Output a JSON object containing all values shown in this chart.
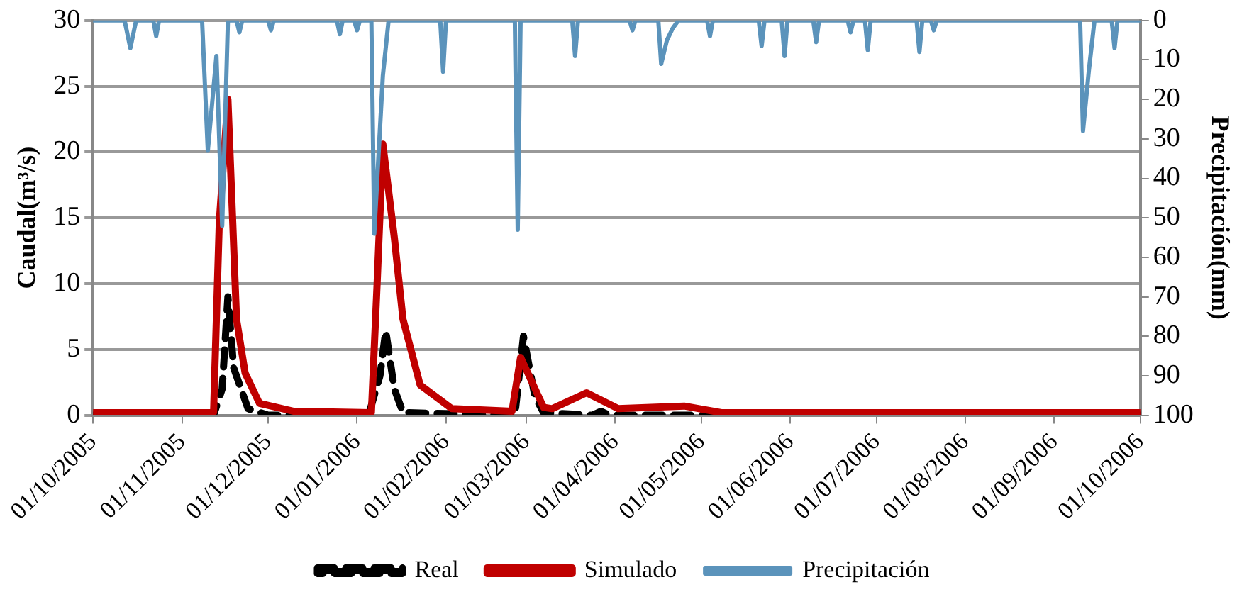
{
  "chart_data": {
    "type": "line",
    "ylabel": "Caudal(m³/s)",
    "y2label": "Precipitación(mm)",
    "xlim": [
      "2005-10-01",
      "2006-10-01"
    ],
    "xticks": [
      {
        "value": "2005-10-01",
        "label": "01/10/2005"
      },
      {
        "value": "2005-11-01",
        "label": "01/11/2005"
      },
      {
        "value": "2005-12-01",
        "label": "01/12/2005"
      },
      {
        "value": "2006-01-01",
        "label": "01/01/2006"
      },
      {
        "value": "2006-02-01",
        "label": "01/02/2006"
      },
      {
        "value": "2006-03-01",
        "label": "01/03/2006"
      },
      {
        "value": "2006-04-01",
        "label": "01/04/2006"
      },
      {
        "value": "2006-05-01",
        "label": "01/05/2006"
      },
      {
        "value": "2006-06-01",
        "label": "01/06/2006"
      },
      {
        "value": "2006-07-01",
        "label": "01/07/2006"
      },
      {
        "value": "2006-08-01",
        "label": "01/08/2006"
      },
      {
        "value": "2006-09-01",
        "label": "01/09/2006"
      },
      {
        "value": "2006-10-01",
        "label": "01/10/2006"
      }
    ],
    "ylim": [
      0,
      30
    ],
    "yticks": [
      0,
      5,
      10,
      15,
      20,
      25,
      30
    ],
    "y2lim": [
      100,
      0
    ],
    "y2ticks": [
      0,
      10,
      20,
      30,
      40,
      50,
      60,
      70,
      80,
      90,
      100
    ],
    "grid": "y",
    "legend": "bottom",
    "marker": "none",
    "series": [
      {
        "name": "Real",
        "color": "#000000",
        "line_style": "dashed",
        "x": [
          "2005-10-01",
          "2005-11-12",
          "2005-11-15",
          "2005-11-17",
          "2005-11-19",
          "2005-11-24",
          "2005-12-01",
          "2006-01-05",
          "2006-01-09",
          "2006-01-11",
          "2006-01-14",
          "2006-01-17",
          "2006-02-25",
          "2006-02-28",
          "2006-03-04",
          "2006-03-07",
          "2006-03-24",
          "2006-03-27",
          "2006-03-30",
          "2006-10-01"
        ],
        "values": [
          0,
          0,
          2,
          9,
          3.6,
          0.5,
          0,
          0,
          3,
          6.4,
          2,
          0.2,
          0,
          6,
          1.4,
          0.2,
          0,
          0.3,
          0,
          0
        ]
      },
      {
        "name": "Simulado",
        "color": "#c00000",
        "line_style": "solid",
        "x": [
          "2005-10-01",
          "2005-11-12",
          "2005-11-14",
          "2005-11-17",
          "2005-11-20",
          "2005-11-23",
          "2005-11-28",
          "2005-12-10",
          "2006-01-06",
          "2006-01-08",
          "2006-01-10",
          "2006-01-14",
          "2006-01-17",
          "2006-01-23",
          "2006-02-03",
          "2006-02-24",
          "2006-02-27",
          "2006-03-07",
          "2006-03-10",
          "2006-03-22",
          "2006-04-02",
          "2006-04-25",
          "2006-05-08",
          "2006-10-01"
        ],
        "values": [
          0.2,
          0.2,
          14.7,
          24,
          7.3,
          3.2,
          0.9,
          0.3,
          0.2,
          10,
          20.6,
          13.5,
          7.3,
          2.3,
          0.5,
          0.3,
          4.4,
          0.6,
          0.5,
          1.7,
          0.5,
          0.7,
          0.2,
          0.2
        ]
      },
      {
        "name": "Precipitación",
        "color": "#5b93bb",
        "line_style": "solid",
        "axis": "y2",
        "x": [
          "2005-10-01",
          "2005-10-12",
          "2005-10-14",
          "2005-10-16",
          "2005-10-22",
          "2005-10-23",
          "2005-10-24",
          "2005-11-08",
          "2005-11-10",
          "2005-11-13",
          "2005-11-15",
          "2005-11-17",
          "2005-11-20",
          "2005-11-21",
          "2005-11-22",
          "2005-12-01",
          "2005-12-02",
          "2005-12-03",
          "2005-12-25",
          "2005-12-26",
          "2005-12-27",
          "2005-12-31",
          "2006-01-01",
          "2006-01-02",
          "2006-01-06",
          "2006-01-07",
          "2006-01-10",
          "2006-01-12",
          "2006-01-30",
          "2006-01-31",
          "2006-02-01",
          "2006-02-25",
          "2006-02-26",
          "2006-02-27",
          "2006-03-17",
          "2006-03-18",
          "2006-03-19",
          "2006-04-06",
          "2006-04-07",
          "2006-04-08",
          "2006-04-16",
          "2006-04-17",
          "2006-04-19",
          "2006-04-21",
          "2006-04-23",
          "2006-05-03",
          "2006-05-04",
          "2006-05-05",
          "2006-05-21",
          "2006-05-22",
          "2006-05-23",
          "2006-05-29",
          "2006-05-30",
          "2006-05-31",
          "2006-06-09",
          "2006-06-10",
          "2006-06-11",
          "2006-06-21",
          "2006-06-22",
          "2006-06-23",
          "2006-06-27",
          "2006-06-28",
          "2006-06-29",
          "2006-07-15",
          "2006-07-16",
          "2006-07-17",
          "2006-07-20",
          "2006-07-21",
          "2006-07-22",
          "2006-09-10",
          "2006-09-11",
          "2006-09-13",
          "2006-09-15",
          "2006-09-21",
          "2006-09-22",
          "2006-09-23",
          "2006-10-01"
        ],
        "values": [
          0,
          0,
          7,
          0,
          0,
          4,
          0,
          0,
          33,
          9,
          52,
          0,
          0,
          3,
          0,
          0,
          2.5,
          0,
          0,
          3.5,
          0,
          0,
          2.5,
          0,
          0,
          54,
          14,
          0,
          0,
          13,
          0,
          0,
          53,
          0,
          0,
          9,
          0,
          0,
          2.5,
          0,
          0,
          11,
          5,
          2,
          0,
          0,
          4,
          0,
          0,
          6.5,
          0,
          0,
          9,
          0,
          0,
          5.5,
          0,
          0,
          3,
          0,
          0,
          7.5,
          0,
          0,
          8,
          0,
          0,
          2.5,
          0,
          0,
          28,
          13,
          0,
          0,
          7,
          0,
          0
        ]
      }
    ]
  }
}
